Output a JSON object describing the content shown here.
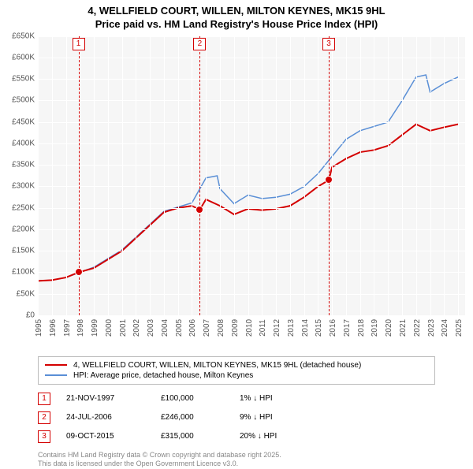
{
  "title_line1": "4, WELLFIELD COURT, WILLEN, MILTON KEYNES, MK15 9HL",
  "title_line2": "Price paid vs. HM Land Registry's House Price Index (HPI)",
  "chart": {
    "type": "line",
    "background_color": "#f6f6f6",
    "grid_color": "#ffffff",
    "x": {
      "min": 1995,
      "max": 2025.5,
      "ticks": [
        1995,
        1996,
        1997,
        1998,
        1999,
        2000,
        2001,
        2002,
        2003,
        2004,
        2005,
        2006,
        2007,
        2008,
        2009,
        2010,
        2011,
        2012,
        2013,
        2014,
        2015,
        2016,
        2017,
        2018,
        2019,
        2020,
        2021,
        2022,
        2023,
        2024,
        2025
      ]
    },
    "y": {
      "min": 0,
      "max": 650000,
      "ticks": [
        0,
        50000,
        100000,
        150000,
        200000,
        250000,
        300000,
        350000,
        400000,
        450000,
        500000,
        550000,
        600000,
        650000
      ],
      "labels": [
        "£0",
        "£50K",
        "£100K",
        "£150K",
        "£200K",
        "£250K",
        "£300K",
        "£350K",
        "£400K",
        "£450K",
        "£500K",
        "£550K",
        "£600K",
        "£650K"
      ]
    },
    "series_price": {
      "color": "#d40000",
      "width": 2,
      "points": [
        [
          1995,
          80000
        ],
        [
          1996,
          82000
        ],
        [
          1997,
          88000
        ],
        [
          1997.9,
          100000
        ],
        [
          1999,
          110000
        ],
        [
          2000,
          130000
        ],
        [
          2001,
          150000
        ],
        [
          2002,
          180000
        ],
        [
          2003,
          210000
        ],
        [
          2004,
          240000
        ],
        [
          2005,
          250000
        ],
        [
          2006,
          255000
        ],
        [
          2006.56,
          246000
        ],
        [
          2007,
          270000
        ],
        [
          2008,
          255000
        ],
        [
          2009,
          235000
        ],
        [
          2010,
          248000
        ],
        [
          2011,
          245000
        ],
        [
          2012,
          248000
        ],
        [
          2013,
          255000
        ],
        [
          2014,
          275000
        ],
        [
          2015,
          300000
        ],
        [
          2015.77,
          315000
        ],
        [
          2016,
          345000
        ],
        [
          2017,
          365000
        ],
        [
          2018,
          380000
        ],
        [
          2019,
          385000
        ],
        [
          2020,
          395000
        ],
        [
          2021,
          420000
        ],
        [
          2022,
          445000
        ],
        [
          2023,
          430000
        ],
        [
          2024,
          438000
        ],
        [
          2025,
          445000
        ]
      ]
    },
    "series_hpi": {
      "color": "#5a8fd6",
      "width": 1.5,
      "points": [
        [
          1995,
          80000
        ],
        [
          1996,
          82000
        ],
        [
          1997,
          88000
        ],
        [
          1998,
          100000
        ],
        [
          1999,
          112000
        ],
        [
          2000,
          132000
        ],
        [
          2001,
          152000
        ],
        [
          2002,
          182000
        ],
        [
          2003,
          212000
        ],
        [
          2004,
          242000
        ],
        [
          2005,
          252000
        ],
        [
          2006,
          262000
        ],
        [
          2007,
          320000
        ],
        [
          2007.8,
          325000
        ],
        [
          2008,
          295000
        ],
        [
          2009,
          260000
        ],
        [
          2010,
          280000
        ],
        [
          2011,
          272000
        ],
        [
          2012,
          275000
        ],
        [
          2013,
          282000
        ],
        [
          2014,
          300000
        ],
        [
          2015,
          330000
        ],
        [
          2016,
          370000
        ],
        [
          2017,
          410000
        ],
        [
          2018,
          430000
        ],
        [
          2019,
          440000
        ],
        [
          2020,
          450000
        ],
        [
          2021,
          500000
        ],
        [
          2022,
          555000
        ],
        [
          2022.7,
          560000
        ],
        [
          2023,
          520000
        ],
        [
          2024,
          540000
        ],
        [
          2025,
          555000
        ]
      ]
    },
    "markers": [
      {
        "n": "1",
        "year": 1997.9,
        "value": 100000,
        "color": "#d40000"
      },
      {
        "n": "2",
        "year": 2006.56,
        "value": 246000,
        "color": "#d40000"
      },
      {
        "n": "3",
        "year": 2015.77,
        "value": 315000,
        "color": "#d40000"
      }
    ]
  },
  "legend": {
    "row1": {
      "color": "#d40000",
      "label": "4, WELLFIELD COURT, WILLEN, MILTON KEYNES, MK15 9HL (detached house)"
    },
    "row2": {
      "color": "#5a8fd6",
      "label": "HPI: Average price, detached house, Milton Keynes"
    }
  },
  "sales": [
    {
      "n": "1",
      "color": "#d40000",
      "date": "21-NOV-1997",
      "price": "£100,000",
      "diff": "1% ↓ HPI"
    },
    {
      "n": "2",
      "color": "#d40000",
      "date": "24-JUL-2006",
      "price": "£246,000",
      "diff": "9% ↓ HPI"
    },
    {
      "n": "3",
      "color": "#d40000",
      "date": "09-OCT-2015",
      "price": "£315,000",
      "diff": "20% ↓ HPI"
    }
  ],
  "footer_line1": "Contains HM Land Registry data © Crown copyright and database right 2025.",
  "footer_line2": "This data is licensed under the Open Government Licence v3.0."
}
